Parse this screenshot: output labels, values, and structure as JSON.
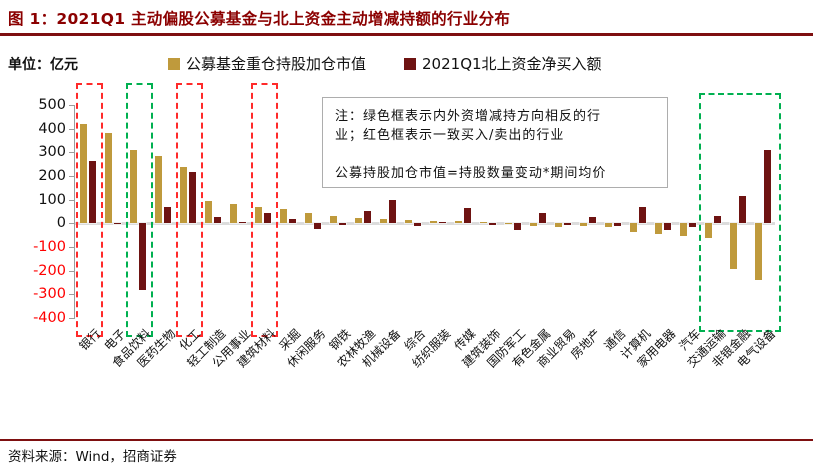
{
  "header": {
    "title": "图 1：2021Q1 主动偏股公募基金与北上资金主动增减持额的行业分布"
  },
  "unit_label": "单位：亿元",
  "legend": [
    {
      "label": "公募基金重仓持股加仓市值",
      "color": "#BF9A3C"
    },
    {
      "label": "2021Q1北上资金净买入额",
      "color": "#6E1312"
    }
  ],
  "note_box": {
    "lines": [
      "注：绿色框表示内外资增减持方向相反的行",
      "业；红色框表示一致买入/卖出的行业",
      "",
      "公募持股加仓市值=持股数量变动*期间均价"
    ]
  },
  "footer": {
    "source": "资料来源：Wind，招商证券"
  },
  "colors": {
    "accent_red": "#8B0000",
    "negative_tick": "#FF0000",
    "box_red": "#FF2A2A",
    "box_green": "#00B050",
    "axis_gray": "#9C9C9C",
    "zero_line": "#DCDCDC"
  },
  "chart_data": {
    "type": "bar",
    "title": "2021Q1 主动偏股公募基金与北上资金主动增减持额的行业分布",
    "unit": "亿元",
    "categories": [
      "银行",
      "电子",
      "食品饮料",
      "医药生物",
      "化工",
      "轻工制造",
      "公用事业",
      "建筑材料",
      "采掘",
      "休闲服务",
      "钢铁",
      "农林牧渔",
      "机械设备",
      "综合",
      "纺织服装",
      "传媒",
      "建筑装饰",
      "国防军工",
      "有色金属",
      "商业贸易",
      "房地产",
      "通信",
      "计算机",
      "家用电器",
      "汽车",
      "交通运输",
      "非银金融",
      "电气设备"
    ],
    "series": [
      {
        "name": "公募基金重仓持股加仓市值",
        "color": "#BF9A3C",
        "values": [
          420,
          380,
          310,
          285,
          240,
          95,
          80,
          68,
          60,
          42,
          32,
          21,
          18,
          15,
          11,
          8,
          7,
          -3,
          -10,
          -15,
          -13,
          -16,
          -35,
          -45,
          -52,
          -60,
          -195,
          -240
        ]
      },
      {
        "name": "2021Q1北上资金净买入额",
        "color": "#6E1312",
        "values": [
          265,
          2,
          -280,
          68,
          218,
          28,
          5,
          42,
          20,
          -25,
          -5,
          53,
          100,
          -12,
          6,
          63,
          -6,
          -30,
          45,
          -6,
          25,
          -12,
          70,
          -28,
          -15,
          30,
          115,
          310
        ]
      }
    ],
    "ylim": [
      -400,
      500
    ],
    "yticks": [
      500,
      400,
      300,
      200,
      100,
      0,
      -100,
      -200,
      -300,
      -400
    ],
    "grid": false,
    "legend_position": "top",
    "highlight_boxes": [
      {
        "from": 0,
        "to": 0,
        "color": "red",
        "categories": [
          "银行"
        ]
      },
      {
        "from": 2,
        "to": 2,
        "color": "green",
        "categories": [
          "食品饮料"
        ]
      },
      {
        "from": 4,
        "to": 4,
        "color": "red",
        "categories": [
          "化工"
        ]
      },
      {
        "from": 7,
        "to": 7,
        "color": "red",
        "categories": [
          "建筑材料"
        ]
      },
      {
        "from": 25,
        "to": 27,
        "color": "green",
        "categories": [
          "交通运输",
          "非银金融",
          "电气设备"
        ]
      }
    ]
  }
}
